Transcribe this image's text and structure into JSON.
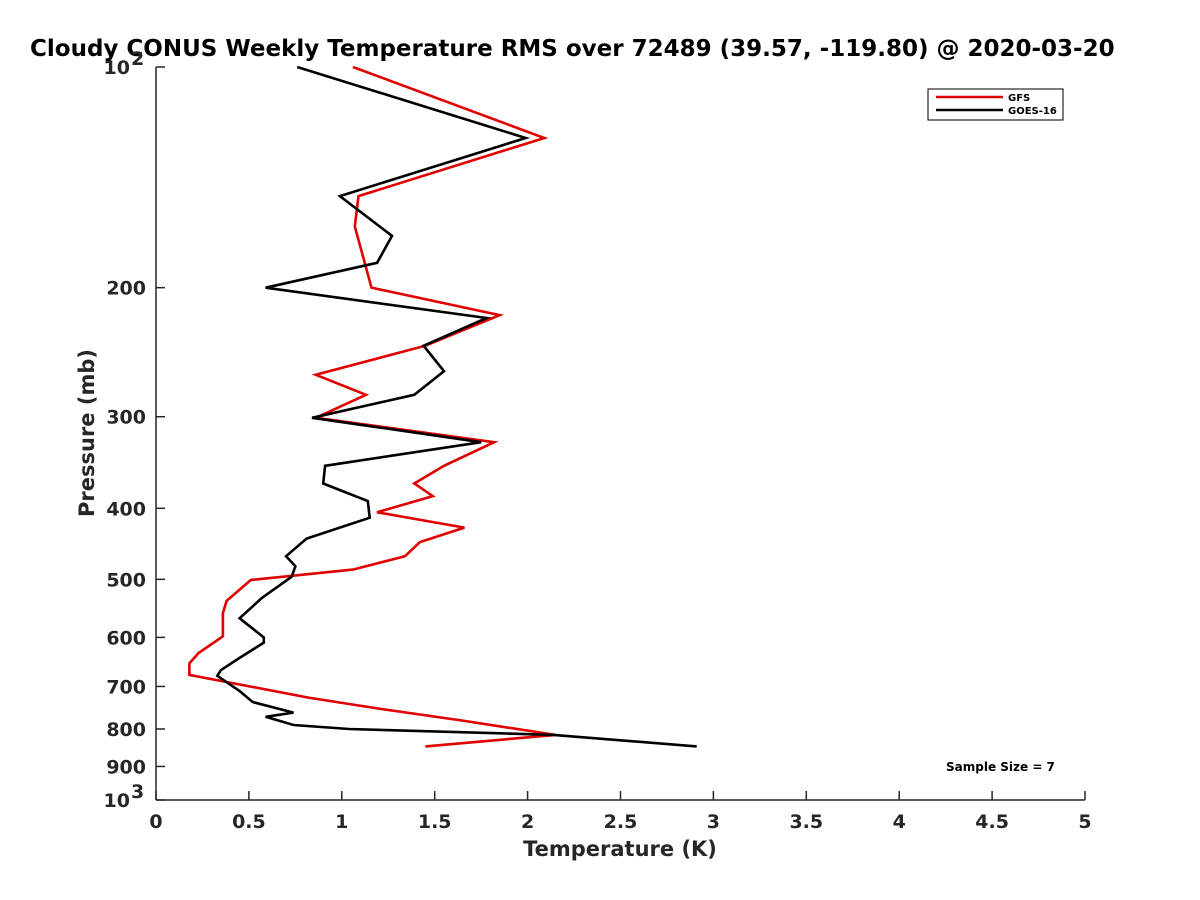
{
  "chart_data": {
    "type": "line",
    "title": "Cloudy CONUS Weekly Temperature RMS over 72489 (39.57, -119.80) @ 2020-03-20",
    "xlabel": "Temperature (K)",
    "ylabel": "Pressure (mb)",
    "xlim": [
      0,
      5
    ],
    "ylim": [
      100,
      1000
    ],
    "y_scale": "log",
    "y_reversed": true,
    "x_ticks": [
      "0",
      "0.5",
      "1",
      "1.5",
      "2",
      "2.5",
      "3",
      "3.5",
      "4",
      "4.5",
      "5"
    ],
    "y_ticks": [
      {
        "value": 100,
        "label": "10",
        "sup": "2"
      },
      {
        "value": 200,
        "label": "200"
      },
      {
        "value": 300,
        "label": "300"
      },
      {
        "value": 400,
        "label": "400"
      },
      {
        "value": 500,
        "label": "500"
      },
      {
        "value": 600,
        "label": "600"
      },
      {
        "value": 700,
        "label": "700"
      },
      {
        "value": 800,
        "label": "800"
      },
      {
        "value": 900,
        "label": "900"
      },
      {
        "value": 1000,
        "label": "10",
        "sup": "3"
      }
    ],
    "grid": false,
    "legend_position": "top-right",
    "annotation": "Sample Size = 7",
    "series": [
      {
        "name": "GFS",
        "color": "#e00000",
        "points": [
          [
            1.06,
            100
          ],
          [
            2.09,
            125
          ],
          [
            1.09,
            150
          ],
          [
            1.07,
            165
          ],
          [
            1.16,
            200
          ],
          [
            1.85,
            218
          ],
          [
            1.45,
            240
          ],
          [
            0.86,
            263
          ],
          [
            1.13,
            280
          ],
          [
            0.86,
            301
          ],
          [
            1.82,
            325
          ],
          [
            1.55,
            350
          ],
          [
            1.39,
            370
          ],
          [
            1.49,
            385
          ],
          [
            1.19,
            405
          ],
          [
            1.66,
            425
          ],
          [
            1.42,
            445
          ],
          [
            1.34,
            465
          ],
          [
            1.06,
            485
          ],
          [
            0.51,
            501
          ],
          [
            0.38,
            535
          ],
          [
            0.36,
            556
          ],
          [
            0.36,
            577
          ],
          [
            0.36,
            598
          ],
          [
            0.23,
            630
          ],
          [
            0.18,
            651
          ],
          [
            0.18,
            675
          ],
          [
            0.82,
            725
          ],
          [
            1.19,
            750
          ],
          [
            1.66,
            780
          ],
          [
            2.15,
            815
          ],
          [
            1.45,
            845
          ]
        ]
      },
      {
        "name": "GOES-16",
        "color": "#000000",
        "points": [
          [
            0.76,
            100
          ],
          [
            1.99,
            125
          ],
          [
            0.99,
            150
          ],
          [
            1.27,
            170
          ],
          [
            1.19,
            185
          ],
          [
            0.59,
            200
          ],
          [
            1.78,
            220
          ],
          [
            1.44,
            240
          ],
          [
            1.55,
            260
          ],
          [
            1.39,
            280
          ],
          [
            0.84,
            301
          ],
          [
            1.75,
            325
          ],
          [
            0.91,
            350
          ],
          [
            0.9,
            370
          ],
          [
            1.14,
            391
          ],
          [
            1.15,
            412
          ],
          [
            0.81,
            440
          ],
          [
            0.7,
            465
          ],
          [
            0.75,
            480
          ],
          [
            0.73,
            496
          ],
          [
            0.57,
            530
          ],
          [
            0.45,
            565
          ],
          [
            0.58,
            600
          ],
          [
            0.58,
            610
          ],
          [
            0.45,
            640
          ],
          [
            0.35,
            665
          ],
          [
            0.33,
            677
          ],
          [
            0.45,
            710
          ],
          [
            0.52,
            735
          ],
          [
            0.74,
            760
          ],
          [
            0.59,
            770
          ],
          [
            0.74,
            790
          ],
          [
            1.04,
            800
          ],
          [
            2.14,
            815
          ],
          [
            2.91,
            845
          ]
        ]
      }
    ]
  }
}
